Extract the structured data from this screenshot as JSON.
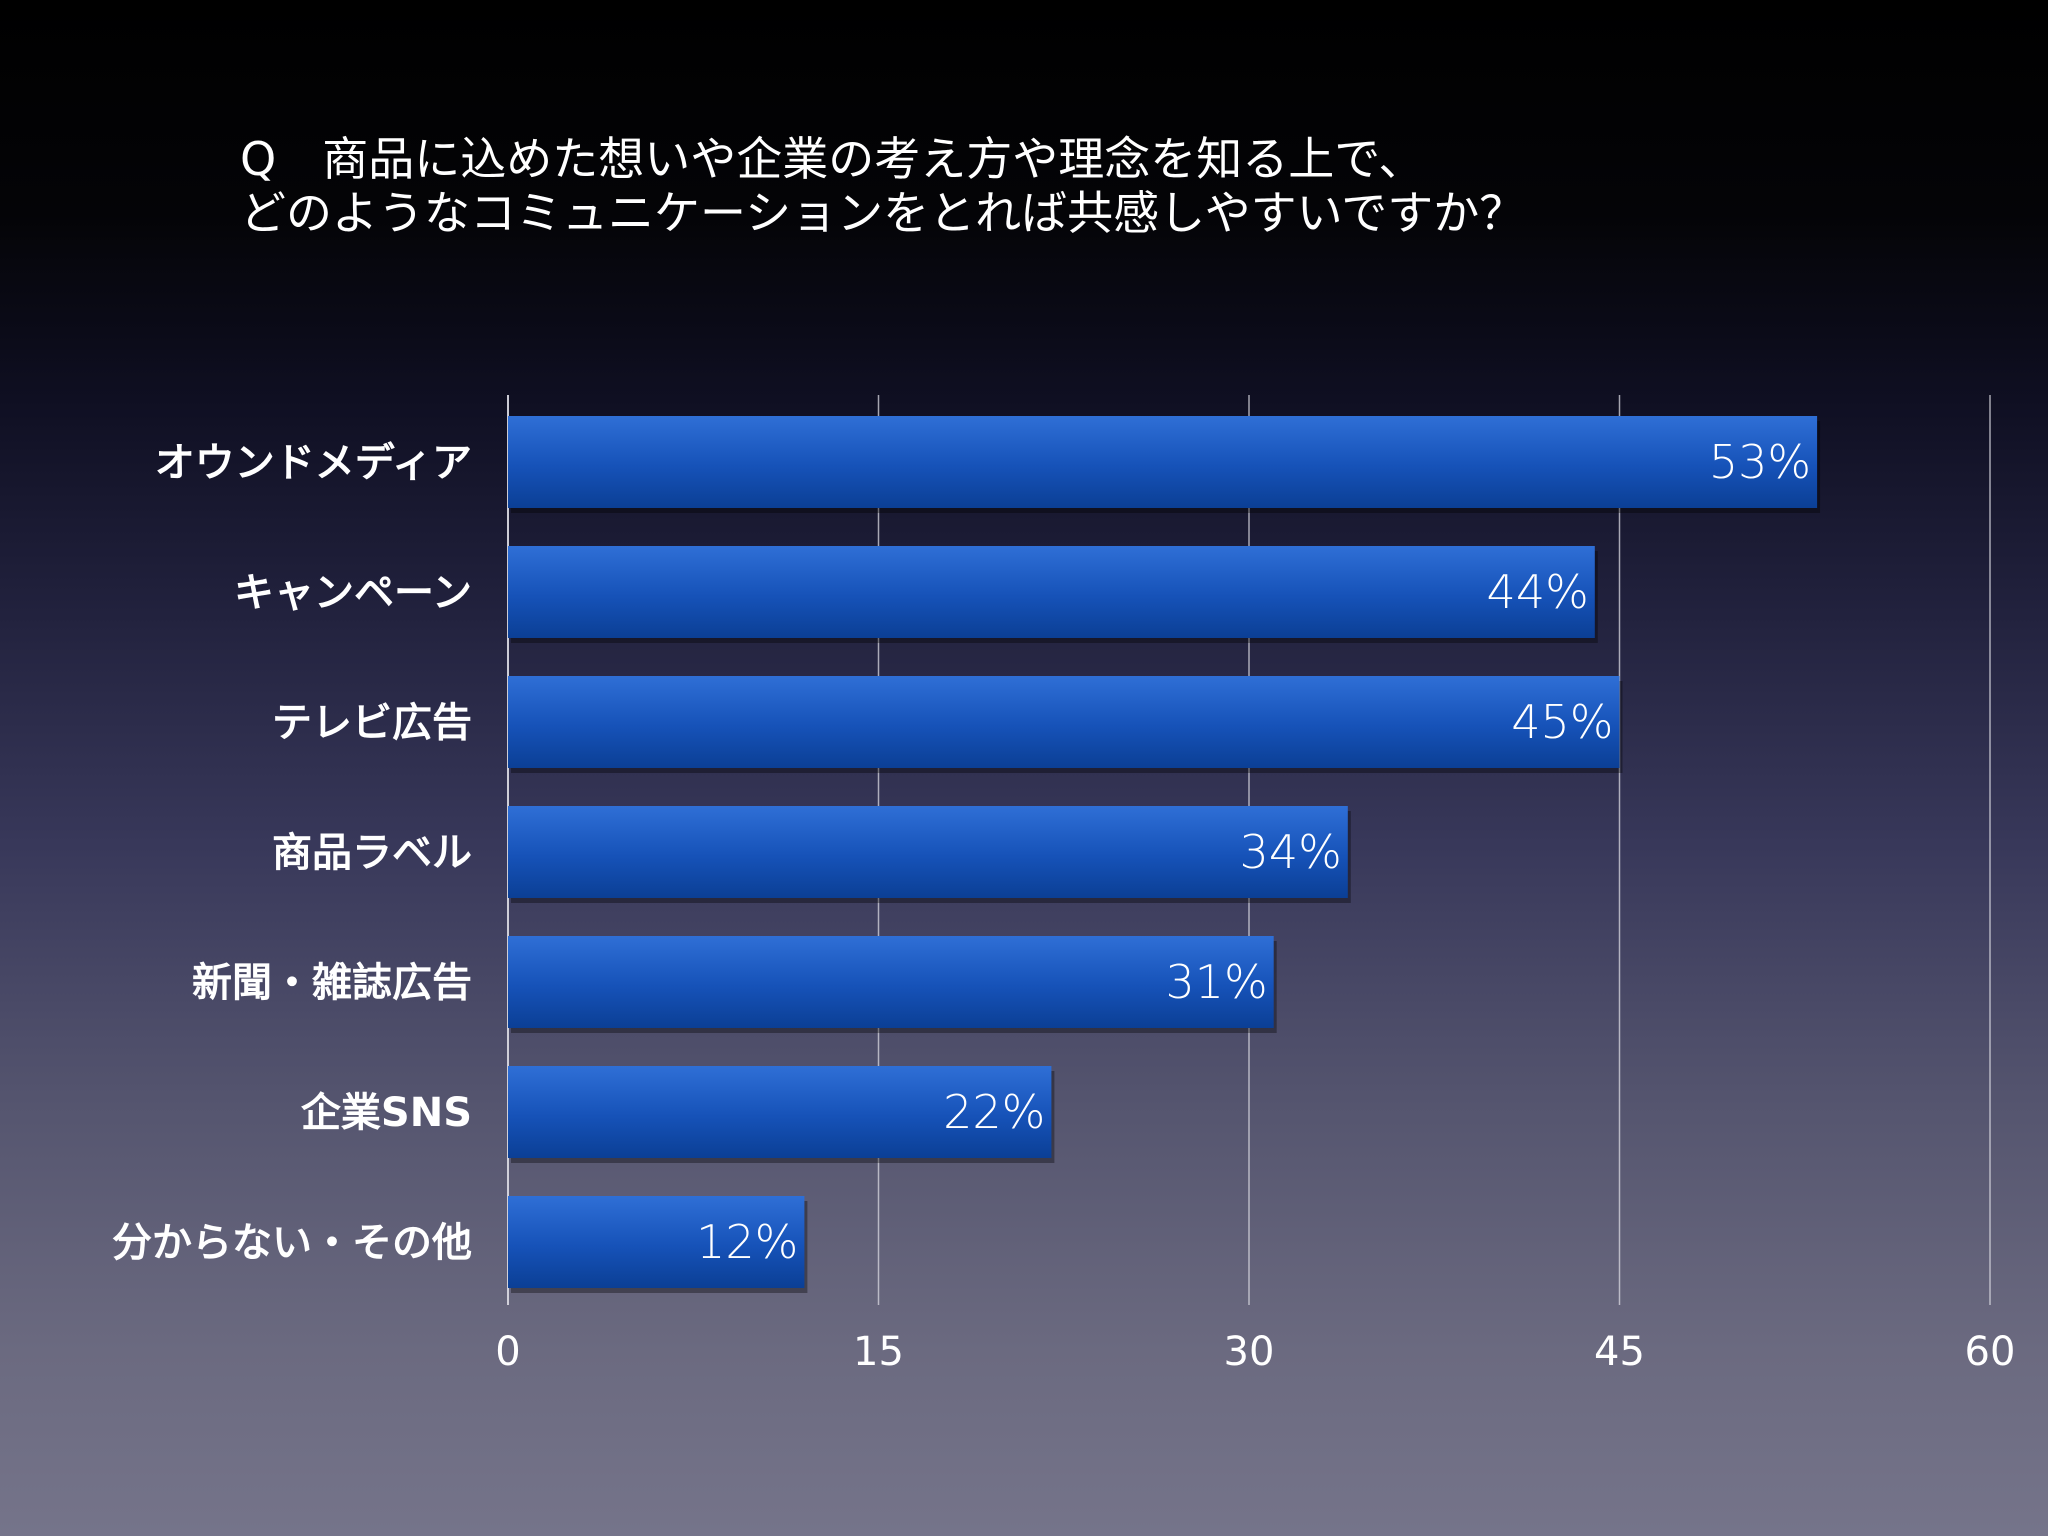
{
  "title": {
    "line1": "Q　商品に込めた想いや企業の考え方や理念を知る上で、",
    "line2": "どのようなコミュニケーションをとれば共感しやすいですか？"
  },
  "chart_data": {
    "type": "bar",
    "orientation": "horizontal",
    "title": "Q　商品に込めた想いや企業の考え方や理念を知る上で、どのようなコミュニケーションをとれば共感しやすいですか？",
    "categories": [
      "オウンドメディア",
      "キャンペーン",
      "テレビ広告",
      "商品ラベル",
      "新聞・雑誌広告",
      "企業SNS",
      "分からない・その他"
    ],
    "values": [
      53,
      44,
      45,
      34,
      31,
      22,
      12
    ],
    "value_labels": [
      "53%",
      "44%",
      "45%",
      "34%",
      "31%",
      "22%",
      "12%"
    ],
    "xlim": [
      0,
      60
    ],
    "xticks": [
      0,
      15,
      30,
      45,
      60
    ],
    "tick_labels": [
      "0",
      "15",
      "30",
      "45",
      "60"
    ],
    "grid": true,
    "xlabel": "",
    "ylabel": ""
  },
  "colors": {
    "bar_top": "#2f6fd6",
    "bar_bottom": "#0b3f95",
    "grid": "#d8d8e0",
    "text": "#ffffff"
  }
}
